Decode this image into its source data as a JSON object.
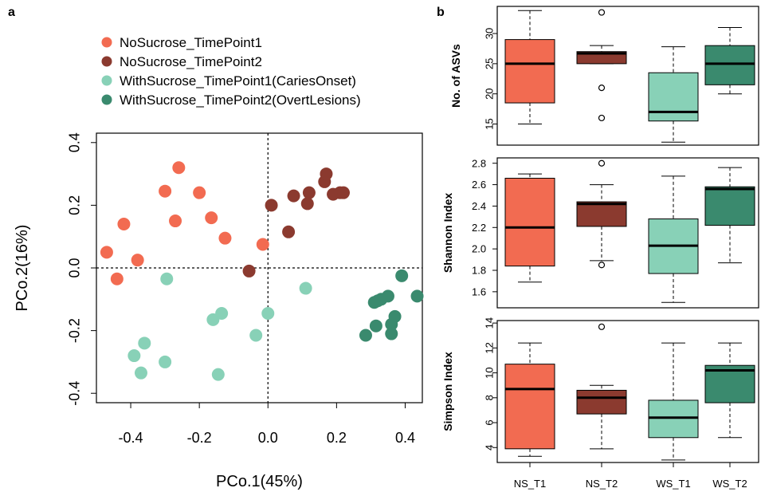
{
  "panel_a": {
    "letter": "a",
    "legend": [
      {
        "label": "NoSucrose_TimePoint1",
        "color": "#F26B51"
      },
      {
        "label": "NoSucrose_TimePoint2",
        "color": "#8B3A2F"
      },
      {
        "label": "WithSucrose_TimePoint1(CariesOnset)",
        "color": "#88D1B7"
      },
      {
        "label": "WithSucrose_TimePoint2(OvertLesions)",
        "color": "#3A8A6E"
      }
    ]
  },
  "panel_b": {
    "letter": "b",
    "groups": [
      "NS_T1",
      "NS_T2",
      "WS_T1",
      "WS_T2"
    ],
    "colors": [
      "#F26B51",
      "#8B3A2F",
      "#88D1B7",
      "#3A8A6E"
    ]
  },
  "chart_data": [
    {
      "type": "scatter",
      "title": "",
      "xlabel": "PCo.1(45%)",
      "ylabel": "PCo.2(16%)",
      "xlim": [
        -0.5,
        0.45
      ],
      "ylim": [
        -0.43,
        0.43
      ],
      "xticks": [
        -0.4,
        -0.2,
        0.0,
        0.2,
        0.4
      ],
      "yticks": [
        -0.4,
        -0.2,
        0.0,
        0.2,
        0.4
      ],
      "reference_lines": {
        "x": 0,
        "y": 0,
        "style": "dotted"
      },
      "legend_position": "top-left",
      "series": [
        {
          "name": "NoSucrose_TimePoint1",
          "color": "#F26B51",
          "points": [
            [
              -0.47,
              0.05
            ],
            [
              -0.44,
              -0.035
            ],
            [
              -0.42,
              0.14
            ],
            [
              -0.38,
              0.025
            ],
            [
              -0.3,
              0.245
            ],
            [
              -0.27,
              0.15
            ],
            [
              -0.26,
              0.32
            ],
            [
              -0.2,
              0.24
            ],
            [
              -0.165,
              0.16
            ],
            [
              -0.125,
              0.095
            ],
            [
              -0.015,
              0.075
            ]
          ]
        },
        {
          "name": "NoSucrose_TimePoint2",
          "color": "#8B3A2F",
          "points": [
            [
              -0.055,
              -0.01
            ],
            [
              0.01,
              0.2
            ],
            [
              0.06,
              0.115
            ],
            [
              0.075,
              0.23
            ],
            [
              0.115,
              0.205
            ],
            [
              0.12,
              0.24
            ],
            [
              0.165,
              0.275
            ],
            [
              0.17,
              0.3
            ],
            [
              0.19,
              0.235
            ],
            [
              0.21,
              0.24
            ],
            [
              0.22,
              0.24
            ]
          ]
        },
        {
          "name": "WithSucrose_TimePoint1(CariesOnset)",
          "color": "#88D1B7",
          "points": [
            [
              -0.39,
              -0.28
            ],
            [
              -0.37,
              -0.335
            ],
            [
              -0.36,
              -0.24
            ],
            [
              -0.295,
              -0.035
            ],
            [
              -0.3,
              -0.3
            ],
            [
              -0.16,
              -0.165
            ],
            [
              -0.145,
              -0.34
            ],
            [
              -0.135,
              -0.145
            ],
            [
              -0.035,
              -0.215
            ],
            [
              0.0,
              -0.145
            ],
            [
              0.11,
              -0.065
            ]
          ]
        },
        {
          "name": "WithSucrose_TimePoint2(OvertLesions)",
          "color": "#3A8A6E",
          "points": [
            [
              0.285,
              -0.215
            ],
            [
              0.31,
              -0.11
            ],
            [
              0.315,
              -0.185
            ],
            [
              0.32,
              -0.105
            ],
            [
              0.33,
              -0.1
            ],
            [
              0.35,
              -0.09
            ],
            [
              0.36,
              -0.18
            ],
            [
              0.36,
              -0.21
            ],
            [
              0.37,
              -0.155
            ],
            [
              0.39,
              -0.025
            ],
            [
              0.435,
              -0.09
            ]
          ]
        }
      ]
    },
    {
      "type": "box",
      "title": "",
      "ylabel": "No. of ASVs",
      "ylim": [
        11.5,
        34.5
      ],
      "yticks": [
        15,
        20,
        25,
        30
      ],
      "categories": [
        "NS_T1",
        "NS_T2",
        "WS_T1",
        "WS_T2"
      ],
      "boxes": [
        {
          "min": 15,
          "q1": 18.5,
          "median": 25,
          "q3": 29,
          "max": 33.8,
          "outliers": []
        },
        {
          "min": 25,
          "q1": 25,
          "median": 26.7,
          "q3": 27,
          "max": 28,
          "outliers": [
            21,
            16,
            33.5
          ]
        },
        {
          "min": 12,
          "q1": 15.5,
          "median": 17,
          "q3": 23.5,
          "max": 27.8,
          "outliers": []
        },
        {
          "min": 20,
          "q1": 21.5,
          "median": 25,
          "q3": 28,
          "max": 31,
          "outliers": []
        }
      ]
    },
    {
      "type": "box",
      "title": "",
      "ylabel": "Shannon Index",
      "ylim": [
        1.45,
        2.85
      ],
      "yticks": [
        1.6,
        1.8,
        2.0,
        2.2,
        2.4,
        2.6,
        2.8
      ],
      "categories": [
        "NS_T1",
        "NS_T2",
        "WS_T1",
        "WS_T2"
      ],
      "boxes": [
        {
          "min": 1.69,
          "q1": 1.84,
          "median": 2.2,
          "q3": 2.66,
          "max": 2.7,
          "outliers": []
        },
        {
          "min": 1.89,
          "q1": 2.21,
          "median": 2.42,
          "q3": 2.44,
          "max": 2.6,
          "outliers": [
            1.85,
            2.8
          ]
        },
        {
          "min": 1.5,
          "q1": 1.77,
          "median": 2.03,
          "q3": 2.28,
          "max": 2.68,
          "outliers": []
        },
        {
          "min": 1.87,
          "q1": 2.22,
          "median": 2.56,
          "q3": 2.58,
          "max": 2.76,
          "outliers": []
        }
      ]
    },
    {
      "type": "box",
      "title": "",
      "ylabel": "Simpson Index",
      "ylim": [
        2.8,
        14.2
      ],
      "yticks": [
        4,
        6,
        8,
        10,
        12,
        14
      ],
      "categories": [
        "NS_T1",
        "NS_T2",
        "WS_T1",
        "WS_T2"
      ],
      "boxes": [
        {
          "min": 3.3,
          "q1": 3.9,
          "median": 8.7,
          "q3": 10.7,
          "max": 12.4,
          "outliers": []
        },
        {
          "min": 3.9,
          "q1": 6.7,
          "median": 8.0,
          "q3": 8.6,
          "max": 9.0,
          "outliers": [
            13.7
          ]
        },
        {
          "min": 3.0,
          "q1": 4.8,
          "median": 6.4,
          "q3": 7.8,
          "max": 12.4,
          "outliers": []
        },
        {
          "min": 4.8,
          "q1": 7.6,
          "median": 10.2,
          "q3": 10.6,
          "max": 12.4,
          "outliers": []
        }
      ]
    }
  ]
}
